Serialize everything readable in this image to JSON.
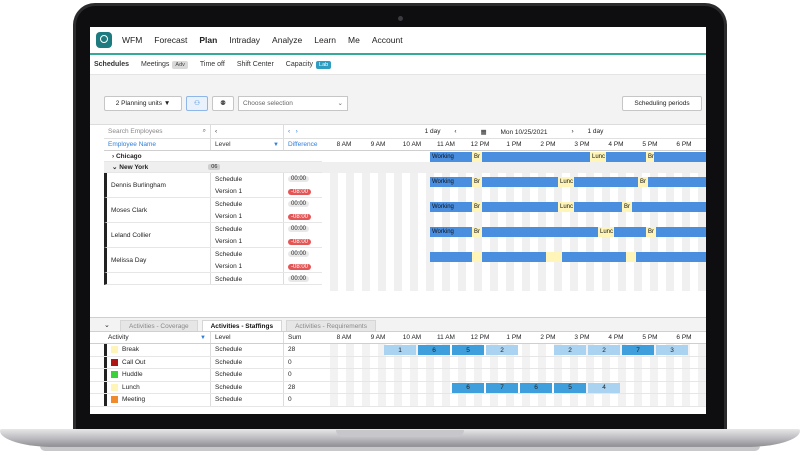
{
  "nav": {
    "items": [
      "WFM",
      "Forecast",
      "Plan",
      "Intraday",
      "Analyze",
      "Learn",
      "Me",
      "Account"
    ],
    "active": "Plan"
  },
  "subnav": {
    "items": [
      {
        "label": "Schedules",
        "active": true,
        "badge": ""
      },
      {
        "label": "Meetings",
        "active": false,
        "badge": "Adv"
      },
      {
        "label": "Time off",
        "active": false,
        "badge": ""
      },
      {
        "label": "Shift Center",
        "active": false,
        "badge": ""
      },
      {
        "label": "Capacity",
        "active": false,
        "badge": "Lab"
      }
    ]
  },
  "toolbar": {
    "planning_units": "2 Planning units",
    "select_placeholder": "Choose selection",
    "periods": "Scheduling periods"
  },
  "grid": {
    "search_placeholder": "Search Employees",
    "level_header": "Level",
    "diff_header": "Difference",
    "employee_header": "Employee Name",
    "date": "Mon 10/25/2021",
    "prev_label": "1 day",
    "next_label": "1 day",
    "hours": [
      "8 AM",
      "9 AM",
      "10 AM",
      "11 AM",
      "12 PM",
      "1 PM",
      "2 PM",
      "3 PM",
      "4 PM",
      "5 PM",
      "6 PM"
    ],
    "groups": [
      {
        "name": "Chicago"
      },
      {
        "name": "New York",
        "count": "06"
      }
    ],
    "employees": [
      {
        "name": "Dennis Burlingham",
        "l1": "Schedule",
        "l2": "Version 1",
        "d1": "00:00",
        "d2": "-08:00"
      },
      {
        "name": "Moses Clark",
        "l1": "Schedule",
        "l2": "Version 1",
        "d1": "00:00",
        "d2": "-08:00"
      },
      {
        "name": "Leland Collier",
        "l1": "Schedule",
        "l2": "Version 1",
        "d1": "00:00",
        "d2": "-08:00"
      },
      {
        "name": "Melissa Day",
        "l1": "Schedule",
        "l2": "Version 1",
        "d1": "00:00",
        "d2": "-08:00"
      },
      {
        "name": "",
        "l1": "Schedule",
        "l2": "",
        "d1": "00:00",
        "d2": ""
      }
    ],
    "bar_labels": {
      "working": "Working",
      "break": "Br",
      "lunch": "Lunc"
    }
  },
  "bottom": {
    "tabs": [
      {
        "label": "Activities - Coverage",
        "active": false
      },
      {
        "label": "Activities - Staffings",
        "active": true
      },
      {
        "label": "Activities - Requirements",
        "active": false
      }
    ],
    "headers": {
      "activity": "Activity",
      "level": "Level",
      "sum": "Sum"
    },
    "rows": [
      {
        "activity": "Break",
        "color": "#fff5b8",
        "level": "Schedule",
        "sum": "28",
        "cells": [
          "",
          "1",
          "6",
          "5",
          "2",
          "",
          "2",
          "2",
          "7",
          "3",
          ""
        ]
      },
      {
        "activity": "Call Out",
        "color": "#b01515",
        "level": "Schedule",
        "sum": "0",
        "cells": []
      },
      {
        "activity": "Huddle",
        "color": "#3ad13a",
        "level": "Schedule",
        "sum": "0",
        "cells": []
      },
      {
        "activity": "Lunch",
        "color": "#fff5b8",
        "level": "Schedule",
        "sum": "28",
        "cells": [
          "",
          "",
          "",
          "6",
          "7",
          "6",
          "5",
          "4",
          "",
          "",
          ""
        ]
      },
      {
        "activity": "Meeting",
        "color": "#f08a2a",
        "level": "Schedule",
        "sum": "0",
        "cells": []
      }
    ]
  }
}
